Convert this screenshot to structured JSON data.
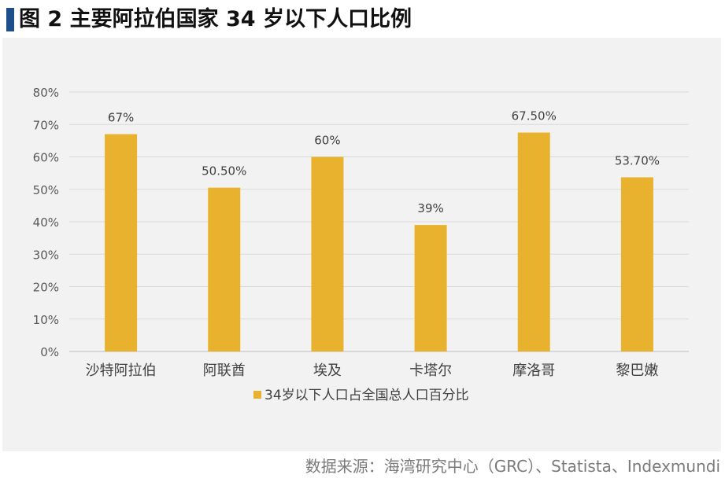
{
  "header": {
    "title": "图 2  主要阿拉伯国家 34 岁以下人口比例"
  },
  "footer": {
    "source": "数据来源：海湾研究中心（GRC）、Statista、Indexmundi"
  },
  "chart_data": {
    "type": "bar",
    "categories": [
      "沙特阿拉伯",
      "阿联酋",
      "埃及",
      "卡塔尔",
      "摩洛哥",
      "黎巴嫩"
    ],
    "series": [
      {
        "name": "34岁以下人口占全国总人口百分比",
        "values": [
          67,
          50.5,
          60,
          39,
          67.5,
          53.7
        ],
        "labels": [
          "67%",
          "50.50%",
          "60%",
          "39%",
          "67.50%",
          "53.70%"
        ],
        "color": "#e8b12e"
      }
    ],
    "yticks": [
      "0%",
      "10%",
      "20%",
      "30%",
      "40%",
      "50%",
      "60%",
      "70%",
      "80%"
    ],
    "ylim": [
      0,
      80
    ],
    "grid": true,
    "legend": "bottom"
  }
}
